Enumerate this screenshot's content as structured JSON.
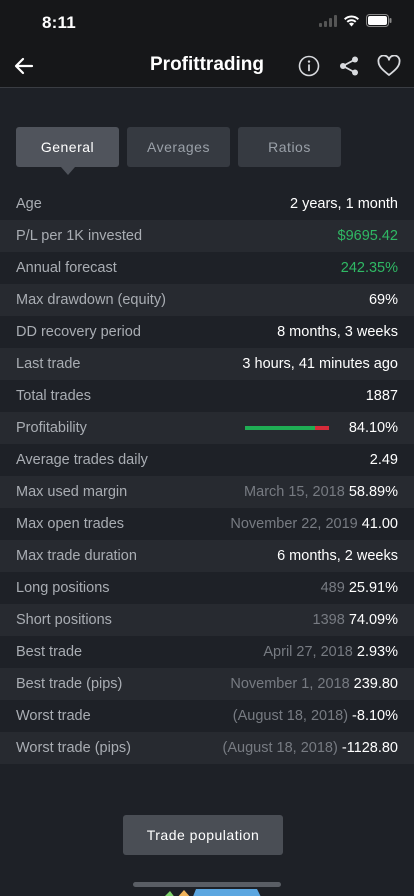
{
  "status_bar": {
    "time": "8:11"
  },
  "nav": {
    "title": "Profittrading"
  },
  "tabs": [
    {
      "label": "General",
      "active": true
    },
    {
      "label": "Averages",
      "active": false
    },
    {
      "label": "Ratios",
      "active": false
    }
  ],
  "stats": [
    {
      "label": "Age",
      "value": "2 years, 1 month"
    },
    {
      "label": "P/L per 1K invested",
      "value": "$9695.42",
      "color": "#2fb864"
    },
    {
      "label": "Annual forecast",
      "value": "242.35%",
      "color": "#2fb864"
    },
    {
      "label": "Max drawdown (equity)",
      "value": "69%"
    },
    {
      "label": "DD recovery period",
      "value": "8 months, 3 weeks"
    },
    {
      "label": "Last trade",
      "value": "3 hours, 41 minutes ago"
    },
    {
      "label": "Total trades",
      "value": "1887"
    },
    {
      "label": "Profitability",
      "value": "84.10%",
      "profit_fraction": 0.841
    },
    {
      "label": "Average trades daily",
      "value": "2.49"
    },
    {
      "label": "Max used margin",
      "secondary": "March 15, 2018",
      "value": "58.89%"
    },
    {
      "label": "Max open trades",
      "secondary": "November 22, 2019",
      "value": "41.00"
    },
    {
      "label": "Max trade duration",
      "value": "6 months, 2 weeks"
    },
    {
      "label": "Long positions",
      "secondary": "489",
      "value": "25.91%"
    },
    {
      "label": "Short positions",
      "secondary": "1398",
      "value": "74.09%"
    },
    {
      "label": "Best trade",
      "secondary": "April 27, 2018",
      "value": "2.93%"
    },
    {
      "label": "Best trade (pips)",
      "secondary": "November 1, 2018",
      "value": "239.80"
    },
    {
      "label": "Worst trade",
      "secondary": "(August 18, 2018)",
      "value": "-8.10%"
    },
    {
      "label": "Worst trade (pips)",
      "secondary": "(August 18, 2018)",
      "value": "-1128.80"
    }
  ],
  "trade_population_label": "Trade population",
  "colors": {
    "positive": "#2fb864",
    "bar_positive": "#1fad54",
    "bar_negative": "#d62b3a"
  }
}
